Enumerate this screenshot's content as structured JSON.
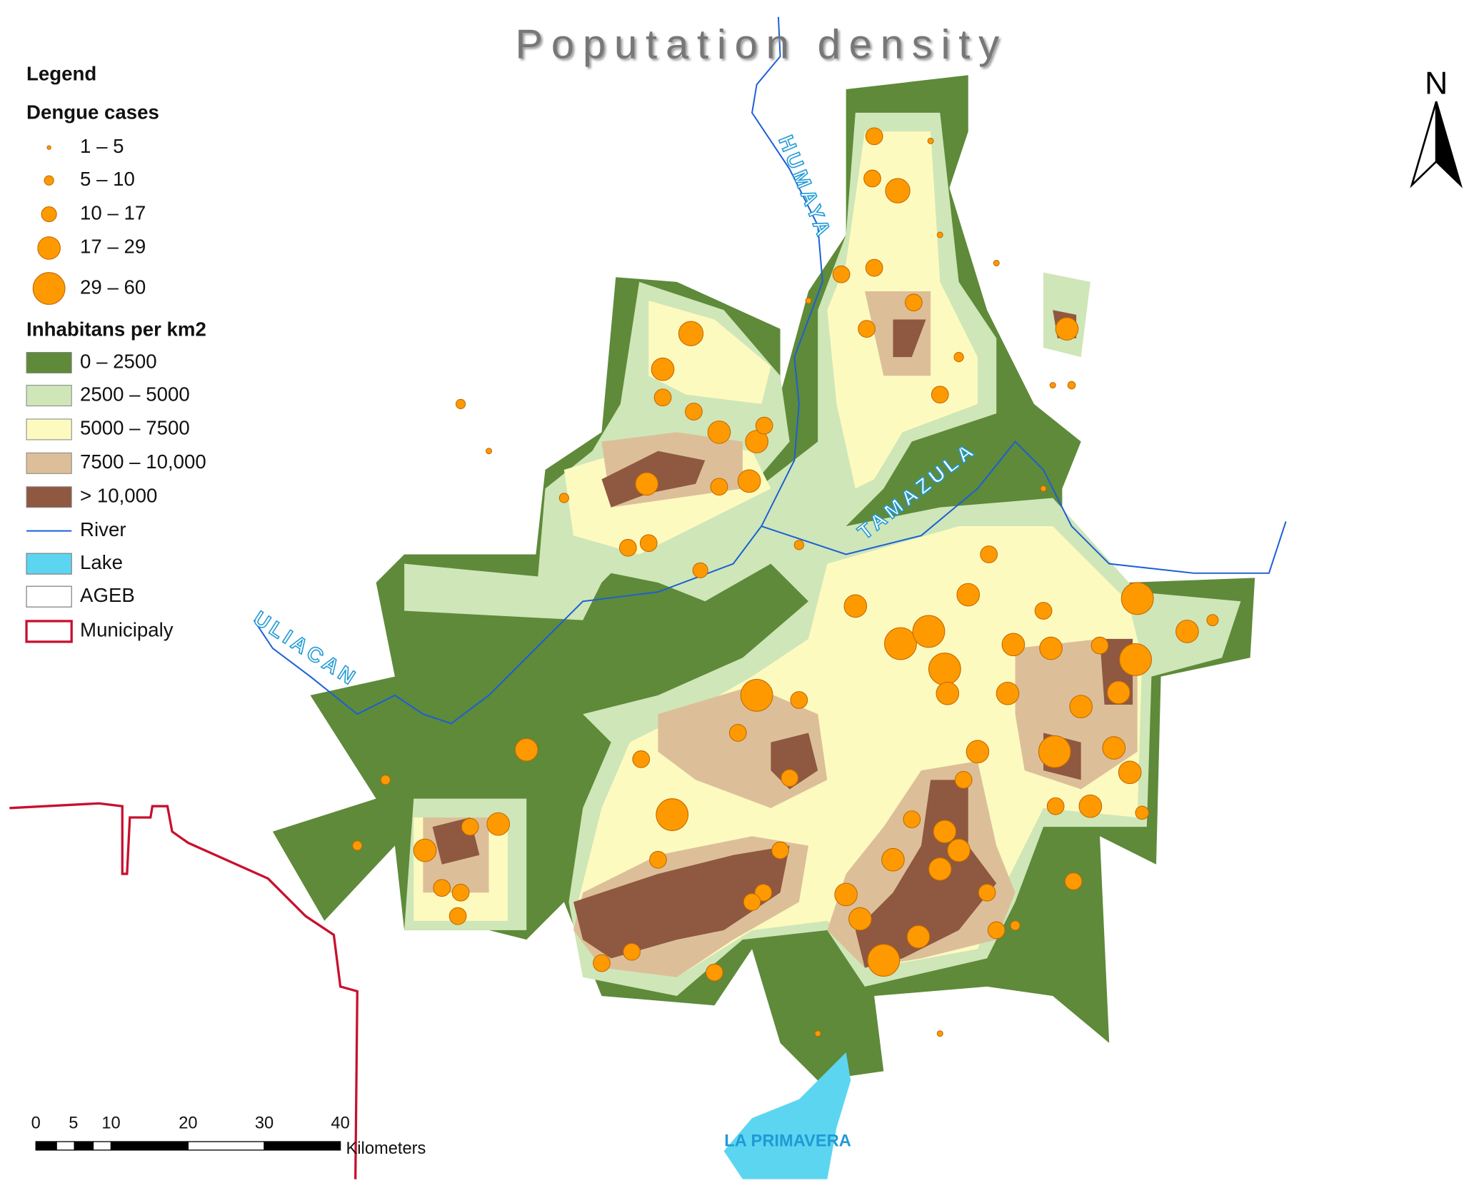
{
  "title": "Poputation density",
  "legend": {
    "title": "Legend",
    "dengue": {
      "title": "Dengue cases",
      "classes": [
        "1 – 5",
        "5 – 10",
        "10 – 17",
        "17 – 29",
        "29 – 60"
      ]
    },
    "density": {
      "title": "Inhabitans per km2",
      "classes": [
        "0 – 2500",
        "2500 – 5000",
        "5000 – 7500",
        "7500 – 10,000",
        "> 10,000"
      ]
    },
    "layers": [
      "River",
      "Lake",
      "AGEB",
      "Municipaly"
    ]
  },
  "map_labels": {
    "rivers": [
      "HUMAYA",
      "TAMAZULA",
      "ULIACAN"
    ],
    "lake": "LA PRIMAVERA"
  },
  "north_arrow": "N",
  "scale_bar": {
    "ticks": [
      "0",
      "5",
      "10",
      "20",
      "30",
      "40"
    ],
    "unit": "Kilometers"
  }
}
